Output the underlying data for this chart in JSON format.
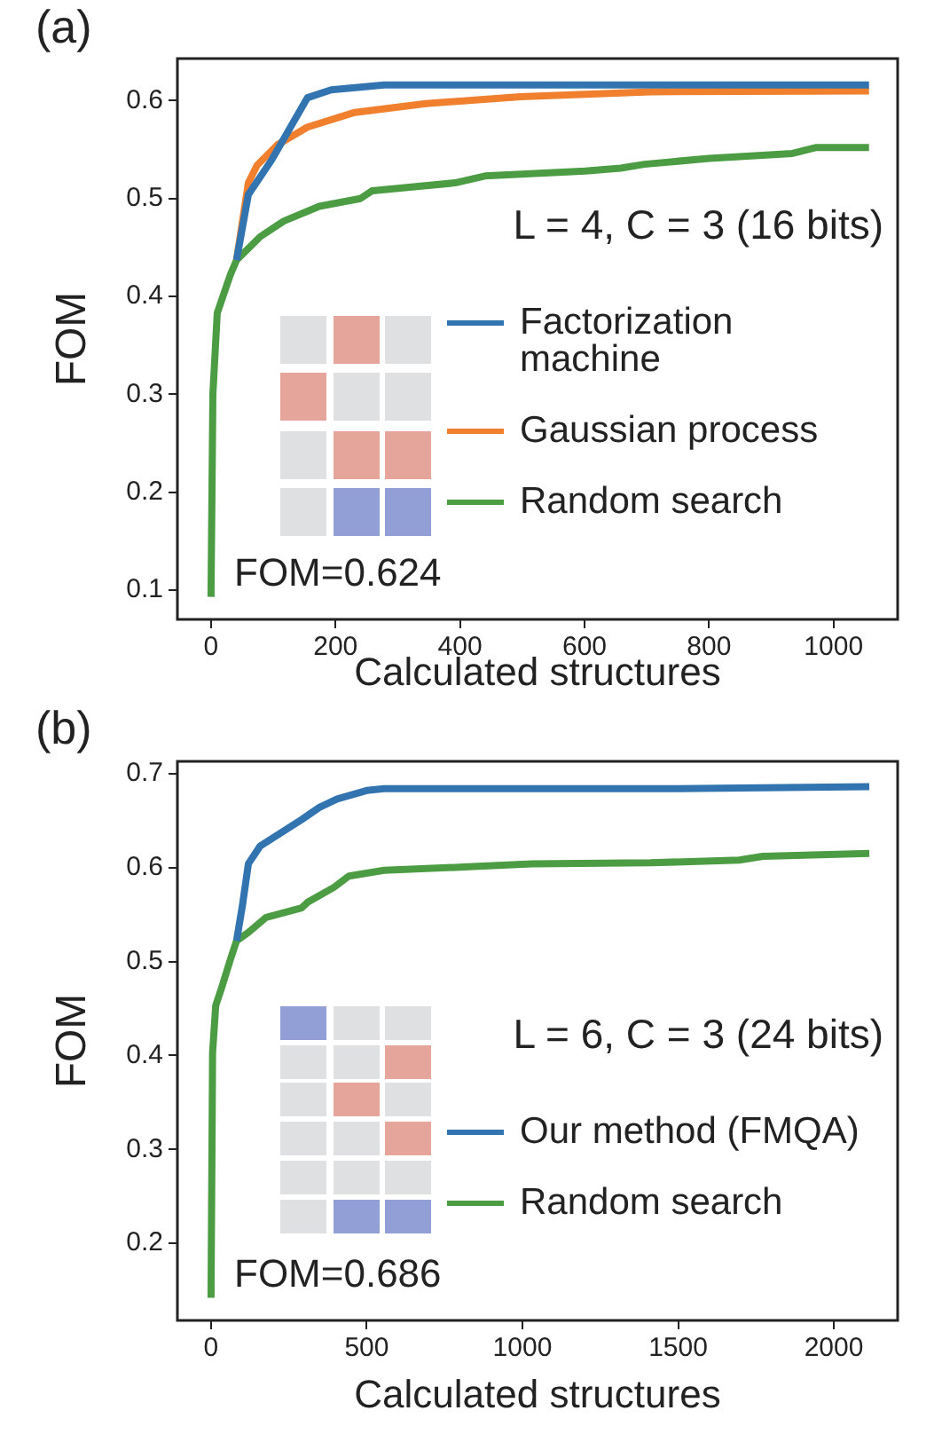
{
  "chart_data": [
    {
      "type": "line",
      "title": "(a)",
      "xlabel": "Calculated structures",
      "ylabel": "FOM",
      "annotations": [
        "L = 4, C = 3 (16 bits)",
        "FOM=0.624"
      ],
      "legend": "right",
      "xlim": [
        -54,
        1103
      ],
      "ylim": [
        0.07,
        0.643
      ],
      "xticks": [
        0,
        200,
        400,
        600,
        800,
        1000
      ],
      "yticks": [
        0.1,
        0.2,
        0.3,
        0.4,
        0.5,
        0.6
      ],
      "series": [
        {
          "name": "Factorization machine",
          "color": "#3274b0",
          "x": [
            41,
            60,
            98,
            155,
            193,
            278,
            600,
            1057
          ],
          "values": [
            0.437,
            0.504,
            0.54,
            0.603,
            0.611,
            0.616,
            0.616,
            0.616
          ]
        },
        {
          "name": "Gaussian process",
          "color": "#f07f2e",
          "x": [
            41,
            60,
            74,
            107,
            155,
            231,
            345,
            497,
            706,
            1057
          ],
          "values": [
            0.437,
            0.516,
            0.534,
            0.555,
            0.573,
            0.588,
            0.597,
            0.604,
            0.609,
            0.61
          ]
        },
        {
          "name": "Random search",
          "color": "#4b9c42",
          "x": [
            0,
            3,
            10,
            31,
            41,
            79,
            117,
            174,
            240,
            259,
            392,
            440,
            601,
            658,
            696,
            800,
            934,
            971,
            1057
          ],
          "values": [
            0.093,
            0.3,
            0.383,
            0.422,
            0.437,
            0.461,
            0.477,
            0.492,
            0.5,
            0.508,
            0.516,
            0.523,
            0.528,
            0.531,
            0.535,
            0.541,
            0.546,
            0.552,
            0.552
          ]
        }
      ]
    },
    {
      "type": "line",
      "title": "(b)",
      "xlabel": "Calculated structures",
      "ylabel": "FOM",
      "annotations": [
        "L = 6, C = 3 (24 bits)",
        "FOM=0.686"
      ],
      "legend": "right",
      "xlim": [
        -108,
        2205
      ],
      "ylim": [
        0.118,
        0.713
      ],
      "xticks": [
        0,
        500,
        1000,
        1500,
        2000
      ],
      "yticks": [
        0.2,
        0.3,
        0.4,
        0.5,
        0.6,
        0.7
      ],
      "series": [
        {
          "name": "Our method (FMQA)",
          "color": "#3274b0",
          "x": [
            82,
            101,
            120,
            158,
            215,
            291,
            348,
            405,
            500,
            556,
            1500,
            2114
          ],
          "values": [
            0.522,
            0.56,
            0.604,
            0.623,
            0.635,
            0.651,
            0.664,
            0.673,
            0.682,
            0.684,
            0.684,
            0.686
          ]
        },
        {
          "name": "Random search",
          "color": "#4b9c42",
          "x": [
            0,
            5,
            15,
            34,
            63,
            82,
            120,
            177,
            291,
            310,
            395,
            443,
            556,
            841,
            1031,
            1411,
            1696,
            1772,
            2114
          ],
          "values": [
            0.142,
            0.403,
            0.453,
            0.472,
            0.503,
            0.522,
            0.531,
            0.547,
            0.557,
            0.563,
            0.579,
            0.591,
            0.597,
            0.601,
            0.604,
            0.605,
            0.608,
            0.612,
            0.615
          ]
        }
      ]
    }
  ]
}
